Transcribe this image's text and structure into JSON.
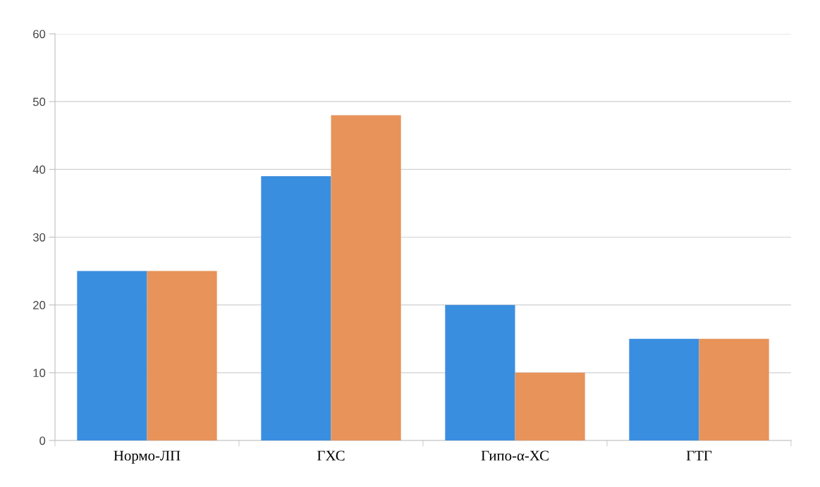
{
  "chart_data": {
    "type": "bar",
    "categories": [
      "Нормо-ЛП",
      "ГХС",
      "Гипо-α-ХС",
      "ГТГ"
    ],
    "series": [
      {
        "color": "#3a8ee0",
        "values": [
          25,
          39,
          20,
          15
        ]
      },
      {
        "color": "#e8935a",
        "values": [
          25,
          48,
          10,
          15
        ]
      }
    ],
    "ylim": [
      0,
      60
    ],
    "yticks": [
      0,
      10,
      20,
      30,
      40,
      50,
      60
    ],
    "grid": "y",
    "legend": false
  }
}
